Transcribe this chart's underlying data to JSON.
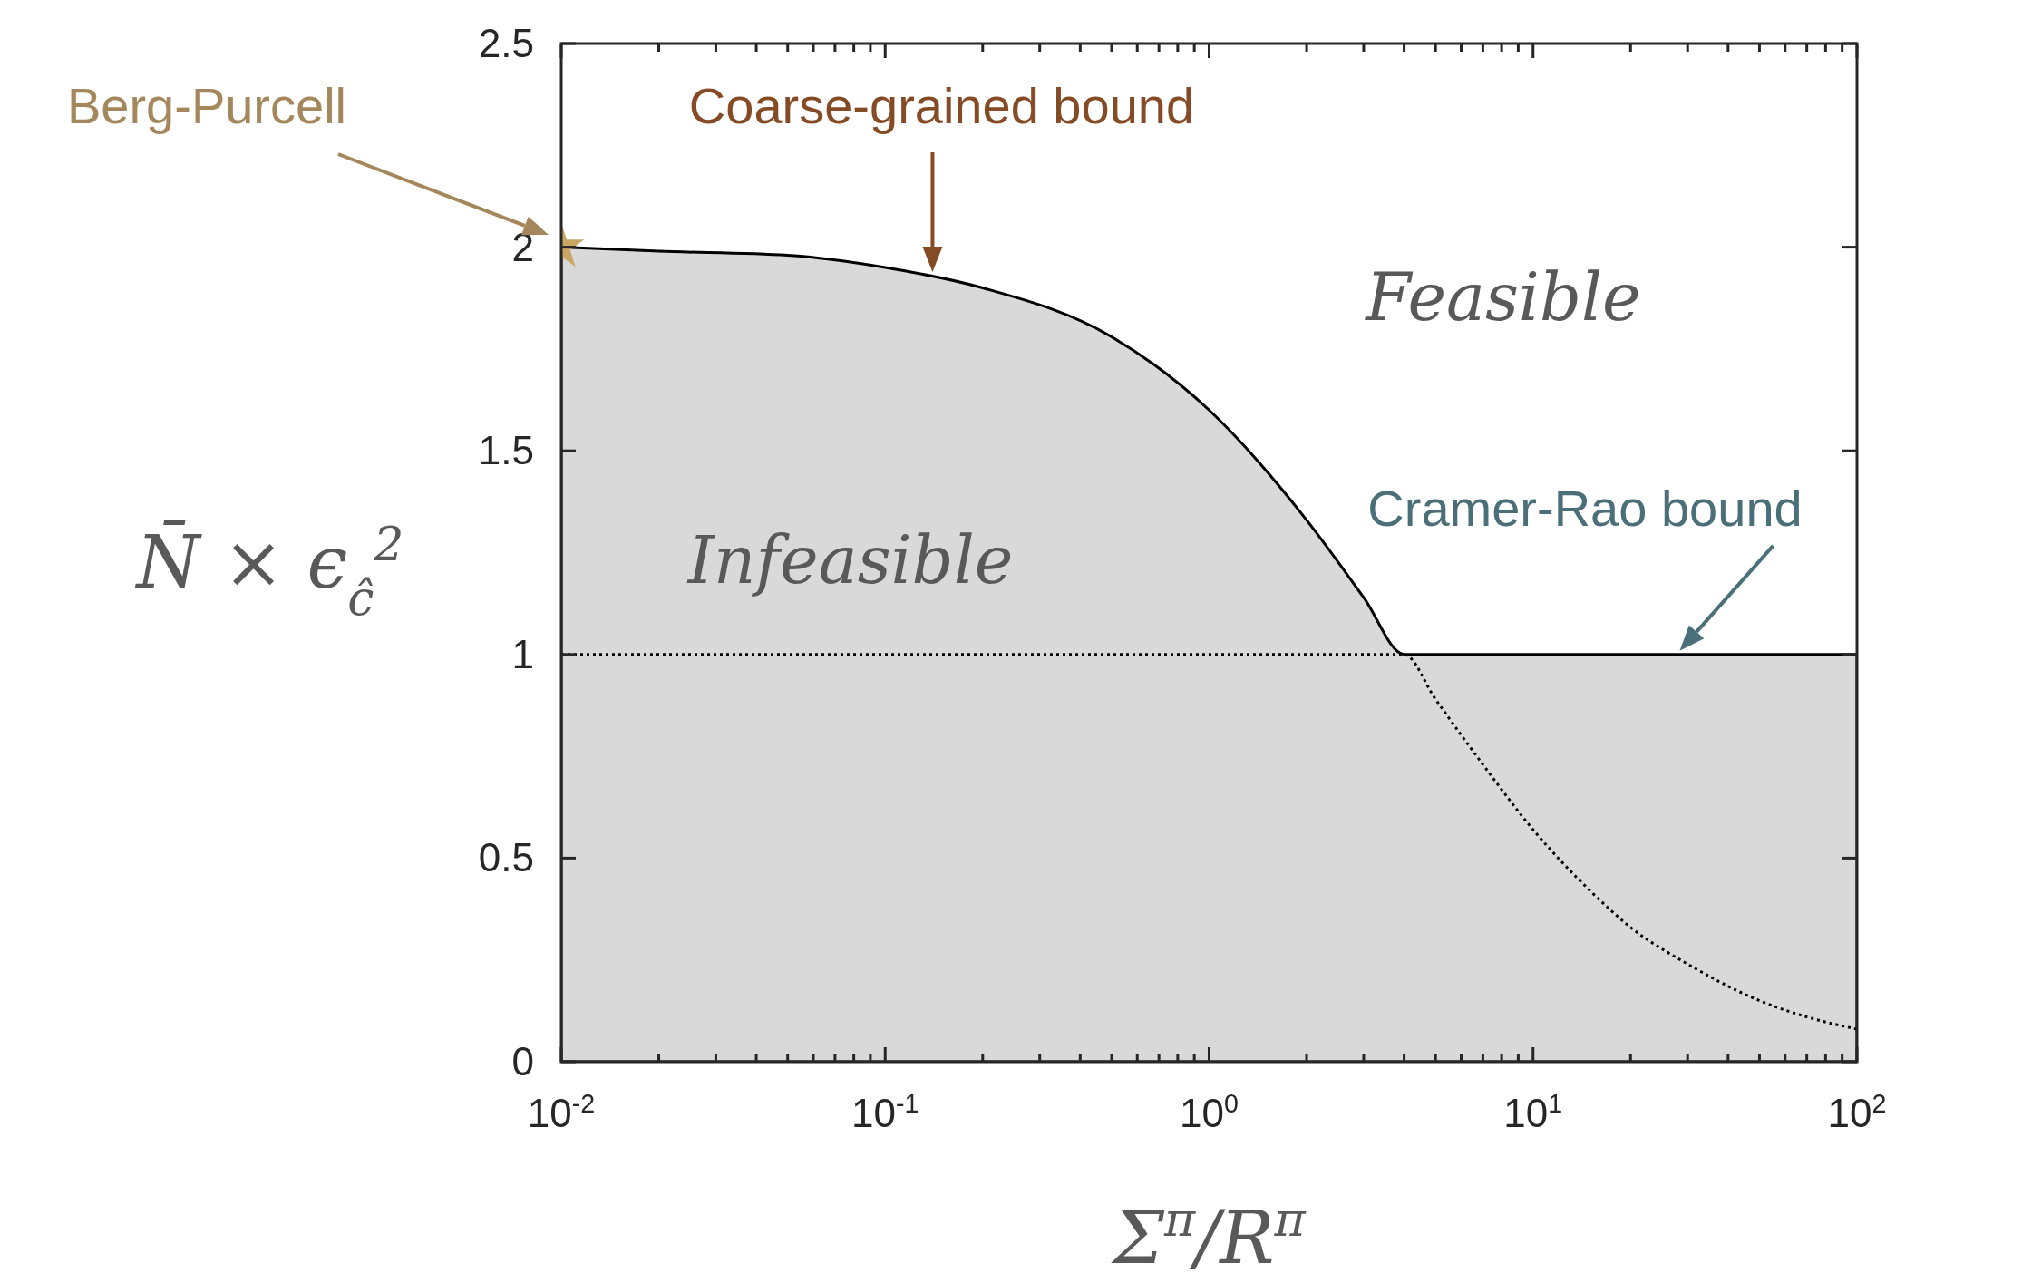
{
  "chart_data": {
    "type": "area",
    "xlabel": "Σ$^{π}$/R$^{π}$",
    "ylabel": "N̄ × ϵ$_{ĉ}$$^{2}$",
    "log": "x",
    "xlim": [
      0.01,
      100
    ],
    "ylim": [
      0,
      2.5
    ],
    "xticks": [
      {
        "value": 0.01,
        "label": "10$^{-2}$"
      },
      {
        "value": 0.02,
        "label": null
      },
      {
        "value": 0.03,
        "label": null
      },
      {
        "value": 0.04,
        "label": null
      },
      {
        "value": 0.05,
        "label": null
      },
      {
        "value": 0.06,
        "label": null
      },
      {
        "value": 0.07,
        "label": null
      },
      {
        "value": 0.08,
        "label": null
      },
      {
        "value": 0.09,
        "label": null
      },
      {
        "value": 0.1,
        "label": "10$^{-1}$"
      },
      {
        "value": 0.2,
        "label": null
      },
      {
        "value": 0.3,
        "label": null
      },
      {
        "value": 0.4,
        "label": null
      },
      {
        "value": 0.5,
        "label": null
      },
      {
        "value": 0.6,
        "label": null
      },
      {
        "value": 0.7,
        "label": null
      },
      {
        "value": 0.8,
        "label": null
      },
      {
        "value": 0.9,
        "label": null
      },
      {
        "value": 1,
        "label": "10$^{0}$"
      },
      {
        "value": 2,
        "label": null
      },
      {
        "value": 3,
        "label": null
      },
      {
        "value": 4,
        "label": null
      },
      {
        "value": 5,
        "label": null
      },
      {
        "value": 6,
        "label": null
      },
      {
        "value": 7,
        "label": null
      },
      {
        "value": 8,
        "label": null
      },
      {
        "value": 9,
        "label": null
      },
      {
        "value": 10,
        "label": "10$^{1}$"
      },
      {
        "value": 20,
        "label": null
      },
      {
        "value": 30,
        "label": null
      },
      {
        "value": 40,
        "label": null
      },
      {
        "value": 50,
        "label": null
      },
      {
        "value": 60,
        "label": null
      },
      {
        "value": 70,
        "label": null
      },
      {
        "value": 80,
        "label": null
      },
      {
        "value": 90,
        "label": null
      },
      {
        "value": 100,
        "label": "10$^{2}$"
      }
    ],
    "yticks": [
      0,
      0.5,
      1,
      1.5,
      2,
      2.5
    ],
    "series": [
      {
        "color": "#d9d9d9",
        "x": [
          0.01,
          0.02,
          0.05,
          0.1,
          0.2,
          0.5,
          1,
          2,
          3,
          4,
          10,
          100
        ],
        "values": [
          2,
          1.99,
          1.98,
          1.95,
          1.9,
          1.78,
          1.6,
          1.33,
          1.14,
          1,
          1,
          1
        ]
      },
      {
        "type": "line",
        "color": "#000000",
        "line_style": "dotted",
        "x": [
          0.01,
          4,
          5,
          7,
          10,
          15,
          20,
          30,
          50,
          70,
          100
        ],
        "values": [
          1,
          1,
          0.89,
          0.73,
          0.57,
          0.42,
          0.33,
          0.24,
          0.15,
          0.11,
          0.08
        ]
      },
      {
        "type": "scatter",
        "color": "#c8a765",
        "marker": "star",
        "x": [
          0.01
        ],
        "values": [
          2
        ]
      }
    ],
    "annotations": [
      "Berg-Purcell",
      {
        "text": "Coarse-grained bound",
        "x": 0.14,
        "y": 1.93
      },
      {
        "text": "Cramer-Rao bound",
        "x": 28,
        "y": 1
      },
      "Feasible",
      "Infeasible"
    ]
  }
}
